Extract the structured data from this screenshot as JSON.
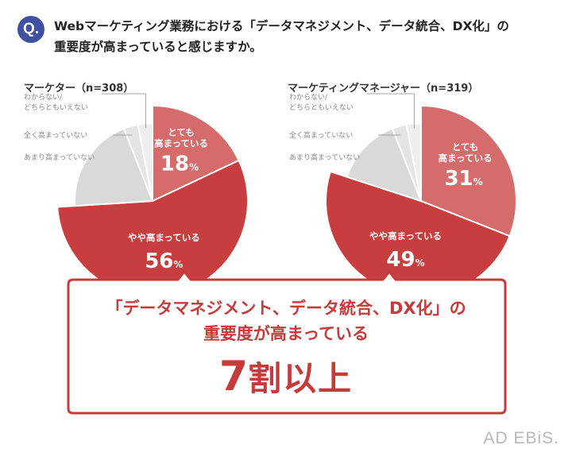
{
  "question": {
    "badge": "Q.",
    "line1": "Webマーケティング業務における「データマネジメント、データ統合、DX化」の",
    "line2": "重要度が高まっていると感じますか。"
  },
  "colors": {
    "high": "#d56b6b",
    "somewhat": "#c83d3d",
    "notmuch": "#d9d9d9",
    "notatall": "#e4e4e4",
    "unknown": "#eeeeee",
    "accent": "#c63a3a",
    "badge": "#3f51a0"
  },
  "chart_data": [
    {
      "type": "pie",
      "title": "マーケター（n=308）",
      "slices": [
        {
          "label": "とても\n高まっている",
          "value": 18,
          "unit": "%",
          "key": "high"
        },
        {
          "label": "やや高まっている",
          "value": 56,
          "unit": "%",
          "key": "somewhat"
        },
        {
          "label": "あまり高まっていない",
          "value": 20,
          "unit": "%",
          "key": "notmuch"
        },
        {
          "label": "全く高まっていない",
          "value": 3,
          "unit": "%",
          "key": "notatall"
        },
        {
          "label": "わからない/\nどちらともいえない",
          "value": 3,
          "unit": "%",
          "key": "unknown"
        }
      ]
    },
    {
      "type": "pie",
      "title": "マーケティングマネージャー（n=319）",
      "slices": [
        {
          "label": "とても\n高まっている",
          "value": 31,
          "unit": "%",
          "key": "high"
        },
        {
          "label": "やや高まっている",
          "value": 49,
          "unit": "%",
          "key": "somewhat"
        },
        {
          "label": "あまり高まっていない",
          "value": 14,
          "unit": "%",
          "key": "notmuch"
        },
        {
          "label": "全く高まっていない",
          "value": 3,
          "unit": "%",
          "key": "notatall"
        },
        {
          "label": "わからない/\nどちらともいえない",
          "value": 3,
          "unit": "%",
          "key": "unknown"
        }
      ]
    }
  ],
  "callout": {
    "line1": "「データマネジメント、データ統合、DX化」の",
    "line2": "重要度が高まっている",
    "big_number": "7",
    "big_text": "割以上"
  },
  "logo": "AD EBiS."
}
